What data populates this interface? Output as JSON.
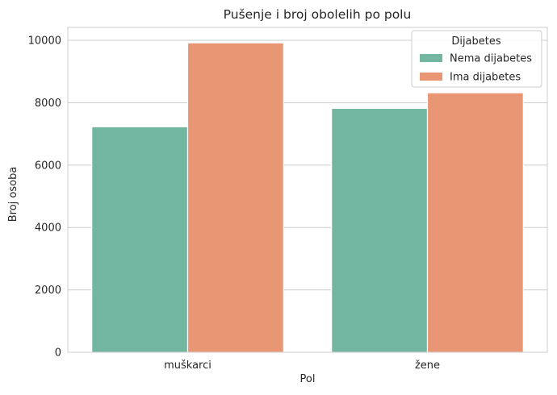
{
  "chart_data": {
    "type": "bar",
    "title": "Pušenje i broj obolelih po polu",
    "xlabel": "Pol",
    "ylabel": "Broj osoba",
    "categories": [
      "muškarci",
      "žene"
    ],
    "series": [
      {
        "name": "Nema dijabetes",
        "values": [
          7230,
          7820
        ],
        "color": "#72b6a1"
      },
      {
        "name": "Ima dijabetes",
        "values": [
          9920,
          8320
        ],
        "color": "#e99675"
      }
    ],
    "ylim": [
      0,
      10415
    ],
    "yticks": [
      0,
      2000,
      4000,
      6000,
      8000,
      10000
    ],
    "grid": "horizontal",
    "legend": {
      "title": "Dijabetes",
      "placement": "top-right"
    }
  }
}
